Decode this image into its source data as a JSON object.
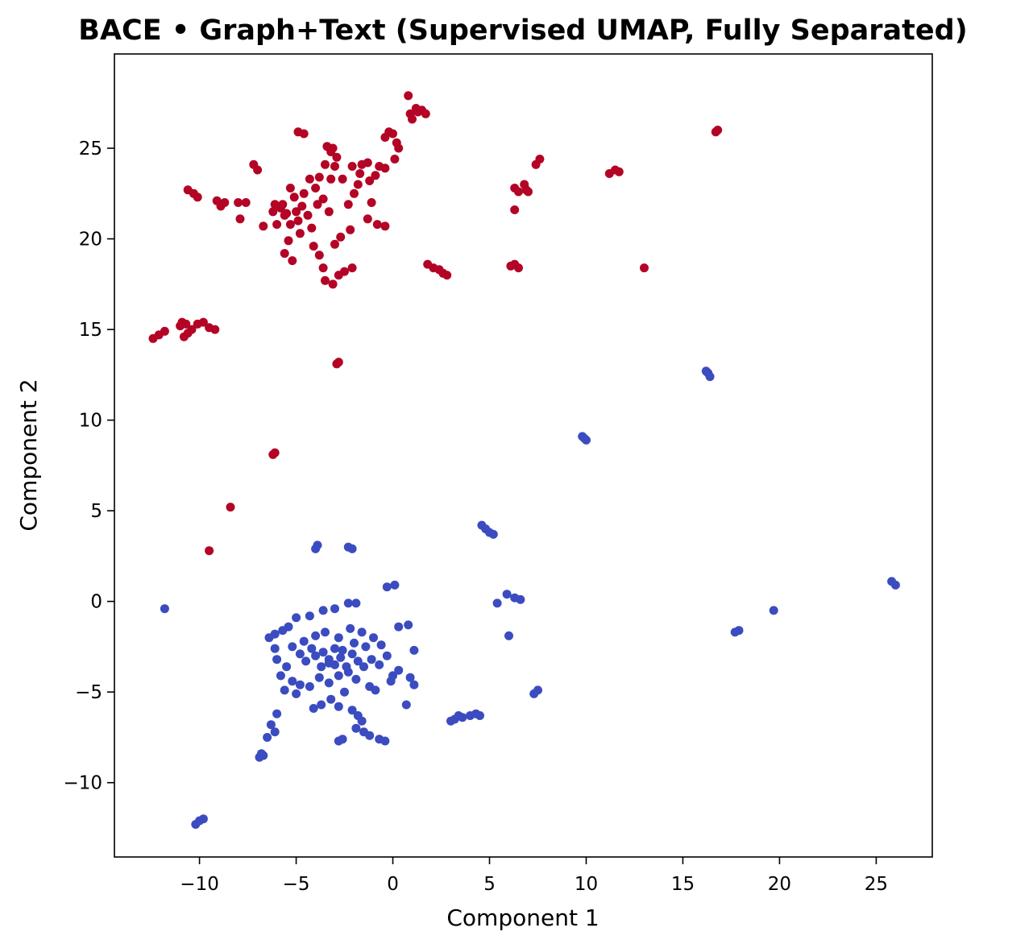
{
  "chart_data": {
    "type": "scatter",
    "title": "BACE • Graph+Text (Supervised UMAP, Fully Separated)",
    "xlabel": "Component 1",
    "ylabel": "Component 2",
    "xlim": [
      -14.4,
      27.9
    ],
    "ylim": [
      -14.1,
      30.2
    ],
    "xticks": [
      {
        "value": -10,
        "label": "−10"
      },
      {
        "value": -5,
        "label": "−5"
      },
      {
        "value": 0,
        "label": "0"
      },
      {
        "value": 5,
        "label": "5"
      },
      {
        "value": 10,
        "label": "10"
      },
      {
        "value": 15,
        "label": "15"
      },
      {
        "value": 20,
        "label": "20"
      },
      {
        "value": 25,
        "label": "25"
      }
    ],
    "yticks": [
      {
        "value": -10,
        "label": "−10"
      },
      {
        "value": -5,
        "label": "−5"
      },
      {
        "value": 0,
        "label": "0"
      },
      {
        "value": 5,
        "label": "5"
      },
      {
        "value": 10,
        "label": "10"
      },
      {
        "value": 15,
        "label": "15"
      },
      {
        "value": 20,
        "label": "20"
      },
      {
        "value": 25,
        "label": "25"
      }
    ],
    "grid": false,
    "legend": "none",
    "series": [
      {
        "color": "#b40426",
        "points": [
          [
            0.8,
            27.9
          ],
          [
            0.9,
            26.9
          ],
          [
            1.2,
            27.2
          ],
          [
            1.5,
            27.1
          ],
          [
            1.7,
            26.9
          ],
          [
            1.0,
            26.6
          ],
          [
            1.3,
            27.0
          ],
          [
            16.8,
            26.0
          ],
          [
            16.7,
            25.9
          ],
          [
            -4.9,
            25.9
          ],
          [
            -4.6,
            25.8
          ],
          [
            -0.2,
            25.9
          ],
          [
            -0.4,
            25.6
          ],
          [
            0.0,
            25.8
          ],
          [
            0.2,
            25.3
          ],
          [
            0.3,
            25.0
          ],
          [
            0.1,
            24.4
          ],
          [
            -3.4,
            25.1
          ],
          [
            -3.1,
            25.0
          ],
          [
            -3.2,
            24.8
          ],
          [
            -2.9,
            24.5
          ],
          [
            -1.3,
            24.2
          ],
          [
            -1.6,
            24.1
          ],
          [
            -0.7,
            24.0
          ],
          [
            -0.4,
            23.9
          ],
          [
            -0.9,
            23.5
          ],
          [
            -3.5,
            24.1
          ],
          [
            -3.0,
            24.0
          ],
          [
            -1.7,
            23.6
          ],
          [
            -1.2,
            23.2
          ],
          [
            -1.8,
            23.0
          ],
          [
            -2.6,
            23.3
          ],
          [
            -3.8,
            23.4
          ],
          [
            -4.3,
            23.3
          ],
          [
            7.6,
            24.4
          ],
          [
            7.4,
            24.1
          ],
          [
            6.8,
            23.0
          ],
          [
            6.9,
            22.7
          ],
          [
            6.5,
            22.6
          ],
          [
            6.3,
            22.8
          ],
          [
            7.0,
            22.6
          ],
          [
            11.5,
            23.8
          ],
          [
            11.7,
            23.7
          ],
          [
            11.2,
            23.6
          ],
          [
            -7.2,
            24.1
          ],
          [
            -7.0,
            23.8
          ],
          [
            -10.6,
            22.7
          ],
          [
            -10.3,
            22.5
          ],
          [
            -10.1,
            22.3
          ],
          [
            -9.1,
            22.1
          ],
          [
            -8.7,
            22.0
          ],
          [
            -8.0,
            22.0
          ],
          [
            -7.6,
            22.0
          ],
          [
            -8.9,
            21.8
          ],
          [
            -6.1,
            21.9
          ],
          [
            -5.8,
            21.7
          ],
          [
            -5.5,
            21.4
          ],
          [
            -5.1,
            22.3
          ],
          [
            -4.7,
            21.8
          ],
          [
            -4.4,
            21.3
          ],
          [
            -4.9,
            21.0
          ],
          [
            -5.3,
            20.8
          ],
          [
            -3.9,
            21.9
          ],
          [
            -3.6,
            22.2
          ],
          [
            -3.3,
            21.5
          ],
          [
            -4.2,
            20.6
          ],
          [
            -5.0,
            21.5
          ],
          [
            -4.6,
            22.5
          ],
          [
            -5.3,
            22.8
          ],
          [
            -5.6,
            21.3
          ],
          [
            -4.8,
            20.3
          ],
          [
            -4.1,
            19.6
          ],
          [
            -5.4,
            19.9
          ],
          [
            -5.6,
            19.2
          ],
          [
            -5.2,
            18.8
          ],
          [
            -3.6,
            18.4
          ],
          [
            -3.1,
            17.5
          ],
          [
            -3.5,
            17.7
          ],
          [
            -2.8,
            18.0
          ],
          [
            -2.5,
            18.2
          ],
          [
            -2.1,
            18.4
          ],
          [
            -3.0,
            19.7
          ],
          [
            -2.7,
            20.1
          ],
          [
            -2.2,
            20.5
          ],
          [
            -3.8,
            19.1
          ],
          [
            -6.0,
            20.8
          ],
          [
            -6.7,
            20.7
          ],
          [
            -7.9,
            21.1
          ],
          [
            -2.0,
            22.5
          ],
          [
            -2.3,
            21.9
          ],
          [
            -1.3,
            21.1
          ],
          [
            -0.8,
            20.8
          ],
          [
            -0.4,
            20.7
          ],
          [
            -1.1,
            22.0
          ],
          [
            -6.2,
            21.5
          ],
          [
            -4.0,
            22.8
          ],
          [
            -3.2,
            23.3
          ],
          [
            -2.1,
            24.0
          ],
          [
            -5.7,
            21.9
          ],
          [
            6.3,
            21.6
          ],
          [
            6.3,
            18.6
          ],
          [
            6.5,
            18.4
          ],
          [
            6.1,
            18.5
          ],
          [
            1.8,
            18.6
          ],
          [
            2.1,
            18.4
          ],
          [
            2.4,
            18.3
          ],
          [
            2.6,
            18.1
          ],
          [
            2.8,
            18.0
          ],
          [
            13.0,
            18.4
          ],
          [
            -11.0,
            15.2
          ],
          [
            -10.7,
            15.3
          ],
          [
            -10.4,
            15.0
          ],
          [
            -10.1,
            15.3
          ],
          [
            -9.8,
            15.4
          ],
          [
            -9.5,
            15.1
          ],
          [
            -9.2,
            15.0
          ],
          [
            -10.6,
            14.8
          ],
          [
            -10.8,
            14.6
          ],
          [
            -12.4,
            14.5
          ],
          [
            -12.1,
            14.7
          ],
          [
            -11.8,
            14.9
          ],
          [
            -10.9,
            15.4
          ],
          [
            -2.9,
            13.1
          ],
          [
            -2.8,
            13.2
          ],
          [
            -6.1,
            8.2
          ],
          [
            -6.2,
            8.1
          ],
          [
            -8.4,
            5.2
          ],
          [
            -9.5,
            2.8
          ]
        ]
      },
      {
        "color": "#3b4cc0",
        "points": [
          [
            16.2,
            12.7
          ],
          [
            16.4,
            12.4
          ],
          [
            16.3,
            12.6
          ],
          [
            9.9,
            9.0
          ],
          [
            10.0,
            8.9
          ],
          [
            9.8,
            9.1
          ],
          [
            4.6,
            4.2
          ],
          [
            4.8,
            4.0
          ],
          [
            5.0,
            3.8
          ],
          [
            5.2,
            3.7
          ],
          [
            -3.9,
            3.1
          ],
          [
            -4.0,
            2.9
          ],
          [
            -2.3,
            3.0
          ],
          [
            -2.1,
            2.9
          ],
          [
            25.8,
            1.1
          ],
          [
            26.0,
            0.9
          ],
          [
            0.1,
            0.9
          ],
          [
            -0.3,
            0.8
          ],
          [
            5.9,
            0.4
          ],
          [
            6.3,
            0.2
          ],
          [
            6.6,
            0.1
          ],
          [
            5.4,
            -0.1
          ],
          [
            6.0,
            -1.9
          ],
          [
            -11.8,
            -0.4
          ],
          [
            19.7,
            -0.5
          ],
          [
            17.9,
            -1.6
          ],
          [
            17.7,
            -1.7
          ],
          [
            -1.9,
            -0.1
          ],
          [
            -2.3,
            -0.1
          ],
          [
            -3.0,
            -0.4
          ],
          [
            -3.6,
            -0.5
          ],
          [
            -4.3,
            -0.8
          ],
          [
            -5.0,
            -0.9
          ],
          [
            -6.1,
            -1.8
          ],
          [
            -6.4,
            -2.0
          ],
          [
            -5.7,
            -1.6
          ],
          [
            -5.2,
            -2.5
          ],
          [
            -4.8,
            -2.9
          ],
          [
            -4.5,
            -3.3
          ],
          [
            -4.0,
            -3.0
          ],
          [
            -3.6,
            -2.8
          ],
          [
            -3.3,
            -3.4
          ],
          [
            -3.0,
            -2.6
          ],
          [
            -2.7,
            -3.1
          ],
          [
            -2.4,
            -3.6
          ],
          [
            -2.1,
            -2.9
          ],
          [
            -1.8,
            -3.3
          ],
          [
            -1.4,
            -2.5
          ],
          [
            -1.0,
            -2.0
          ],
          [
            -0.6,
            -2.4
          ],
          [
            -0.3,
            -3.0
          ],
          [
            -1.6,
            -1.7
          ],
          [
            -2.2,
            -1.5
          ],
          [
            -2.8,
            -2.0
          ],
          [
            -3.5,
            -1.7
          ],
          [
            -4.0,
            -1.9
          ],
          [
            -4.6,
            -2.2
          ],
          [
            -5.4,
            -1.4
          ],
          [
            -6.1,
            -2.6
          ],
          [
            -6.0,
            -3.2
          ],
          [
            -5.5,
            -3.6
          ],
          [
            -5.8,
            -4.1
          ],
          [
            -5.2,
            -4.4
          ],
          [
            -4.8,
            -4.6
          ],
          [
            -4.3,
            -4.7
          ],
          [
            -3.8,
            -4.2
          ],
          [
            -3.3,
            -4.5
          ],
          [
            -2.8,
            -4.1
          ],
          [
            -2.3,
            -3.9
          ],
          [
            -1.9,
            -4.3
          ],
          [
            -1.5,
            -3.6
          ],
          [
            -1.1,
            -3.2
          ],
          [
            -0.7,
            -3.5
          ],
          [
            0.3,
            -1.4
          ],
          [
            0.8,
            -1.3
          ],
          [
            1.1,
            -2.7
          ],
          [
            0.3,
            -3.8
          ],
          [
            0.0,
            -4.1
          ],
          [
            0.9,
            -4.2
          ],
          [
            1.1,
            -4.6
          ],
          [
            -0.1,
            -4.4
          ],
          [
            -1.2,
            -4.7
          ],
          [
            -2.5,
            -5.0
          ],
          [
            -3.2,
            -5.4
          ],
          [
            -3.7,
            -5.7
          ],
          [
            -4.1,
            -5.9
          ],
          [
            -5.6,
            -4.9
          ],
          [
            -5.0,
            -5.1
          ],
          [
            -2.8,
            -5.8
          ],
          [
            -2.1,
            -6.0
          ],
          [
            -1.8,
            -6.3
          ],
          [
            -1.6,
            -6.6
          ],
          [
            -1.9,
            -7.0
          ],
          [
            -1.5,
            -7.2
          ],
          [
            -1.2,
            -7.4
          ],
          [
            -0.7,
            -7.6
          ],
          [
            -0.4,
            -7.7
          ],
          [
            -2.8,
            -7.7
          ],
          [
            -2.6,
            -7.6
          ],
          [
            -3.3,
            -3.2
          ],
          [
            -3.0,
            -3.5
          ],
          [
            -2.6,
            -2.7
          ],
          [
            -3.7,
            -3.6
          ],
          [
            -4.2,
            -2.6
          ],
          [
            -2.0,
            -2.3
          ],
          [
            -0.9,
            -4.9
          ],
          [
            0.7,
            -5.7
          ],
          [
            -6.0,
            -6.2
          ],
          [
            -6.3,
            -6.8
          ],
          [
            -6.1,
            -7.2
          ],
          [
            -6.5,
            -7.5
          ],
          [
            -6.8,
            -8.4
          ],
          [
            -6.9,
            -8.6
          ],
          [
            -6.7,
            -8.5
          ],
          [
            -10.2,
            -12.3
          ],
          [
            -10.0,
            -12.1
          ],
          [
            -9.8,
            -12.0
          ],
          [
            3.0,
            -6.6
          ],
          [
            3.2,
            -6.5
          ],
          [
            3.4,
            -6.3
          ],
          [
            3.6,
            -6.4
          ],
          [
            4.0,
            -6.3
          ],
          [
            4.3,
            -6.2
          ],
          [
            4.5,
            -6.3
          ],
          [
            7.3,
            -5.1
          ],
          [
            7.5,
            -4.9
          ]
        ]
      }
    ]
  }
}
